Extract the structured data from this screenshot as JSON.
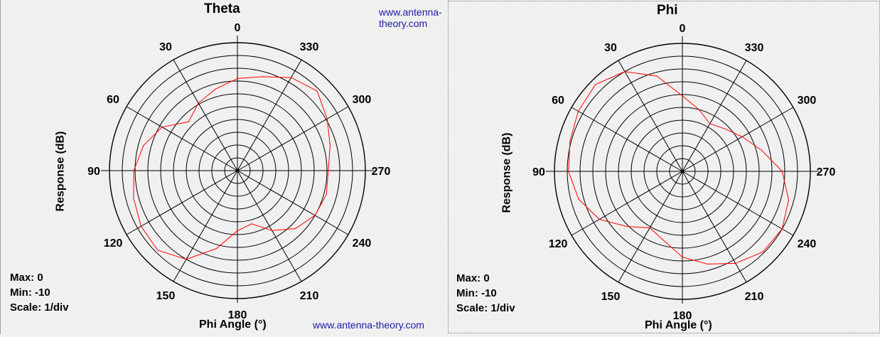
{
  "watermark": "www.antenna-theory.com",
  "colors": {
    "trace": "#ff0000",
    "grid": "#000000",
    "background": "#f0f0f0",
    "watermark": "#1a1aa6"
  },
  "left": {
    "title": "Theta",
    "ylabel": "Response (dB)",
    "xlabel": "Phi Angle (°)",
    "stats": {
      "max": "Max: 0",
      "min": "Min: -10",
      "scale": "Scale: 1/div"
    }
  },
  "right": {
    "title": "Phi",
    "ylabel": "Response (dB)",
    "xlabel": "Phi Angle (°)",
    "stats": {
      "max": "Max: 0",
      "min": "Min: -10",
      "scale": "Scale: 1/div"
    }
  },
  "chart_data": [
    {
      "type": "polar",
      "title": "Theta",
      "xlabel": "Phi Angle (°)",
      "ylabel": "Response (dB)",
      "rlim": [
        -10,
        0
      ],
      "grid": true,
      "angle_direction": "counterclockwise",
      "angle_zero": "top",
      "angle_ticks": [
        "0",
        "30",
        "60",
        "90",
        "120",
        "150",
        "180",
        "210",
        "240",
        "270",
        "300",
        "330"
      ],
      "series": [
        {
          "angles": [
            0,
            15,
            30,
            45,
            60,
            75,
            90,
            105,
            120,
            135,
            150,
            165,
            180,
            195,
            210,
            225,
            240,
            255,
            270,
            285,
            300,
            315,
            330,
            345
          ],
          "values": [
            -2.8,
            -3.4,
            -3.9,
            -4.6,
            -3.2,
            -2.4,
            -1.9,
            -1.6,
            -1.3,
            -1.2,
            -2.0,
            -3.7,
            -5.3,
            -5.7,
            -4.6,
            -3.6,
            -3.0,
            -2.8,
            -2.9,
            -2.5,
            -1.9,
            -1.2,
            -1.6,
            -2.4
          ]
        }
      ]
    },
    {
      "type": "polar",
      "title": "Phi",
      "xlabel": "Phi Angle (°)",
      "ylabel": "Response (dB)",
      "rlim": [
        -10,
        0
      ],
      "grid": true,
      "angle_direction": "counterclockwise",
      "angle_zero": "top",
      "angle_ticks": [
        "0",
        "30",
        "60",
        "90",
        "120",
        "150",
        "180",
        "210",
        "240",
        "270",
        "300",
        "330"
      ],
      "series": [
        {
          "angles": [
            0,
            15,
            30,
            45,
            60,
            75,
            90,
            105,
            120,
            135,
            150,
            165,
            180,
            195,
            210,
            225,
            240,
            255,
            270,
            285,
            300,
            315,
            330,
            345
          ],
          "values": [
            -4.1,
            -2.3,
            -1.0,
            -0.4,
            -0.6,
            -0.9,
            -1.1,
            -1.6,
            -2.5,
            -3.9,
            -4.9,
            -4.4,
            -3.3,
            -2.5,
            -1.7,
            -1.1,
            -1.0,
            -1.4,
            -2.2,
            -3.6,
            -4.6,
            -5.3,
            -5.7,
            -5.0
          ]
        }
      ]
    }
  ]
}
